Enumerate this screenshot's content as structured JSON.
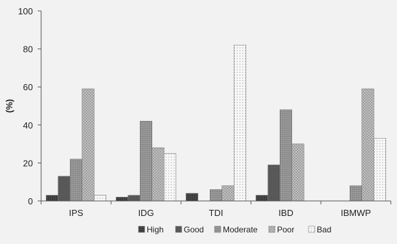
{
  "chart_data": {
    "type": "bar",
    "ylabel": "(%)",
    "ylim": [
      0,
      100
    ],
    "yticks": [
      0,
      20,
      40,
      60,
      80,
      100
    ],
    "grid": false,
    "legend_position": "bottom",
    "categories": [
      "IPS",
      "IDG",
      "TDI",
      "IBD",
      "IBMWP"
    ],
    "series": [
      {
        "name": "High",
        "values": [
          3,
          2,
          4,
          3,
          0
        ],
        "color": "#3a3a3a",
        "pattern": "dots-dark"
      },
      {
        "name": "Good",
        "values": [
          13,
          3,
          0,
          19,
          0
        ],
        "color": "#555555",
        "pattern": "solid-dark"
      },
      {
        "name": "Moderate",
        "values": [
          22,
          42,
          6,
          48,
          8
        ],
        "color": "#8c8c8c",
        "pattern": "fine-grey"
      },
      {
        "name": "Poor",
        "values": [
          59,
          28,
          8,
          30,
          59
        ],
        "color": "#b4b4b4",
        "pattern": "cross-light"
      },
      {
        "name": "Bad",
        "values": [
          3,
          25,
          82,
          0,
          33
        ],
        "color": "#f4f4f4",
        "pattern": "dots-white"
      }
    ]
  }
}
